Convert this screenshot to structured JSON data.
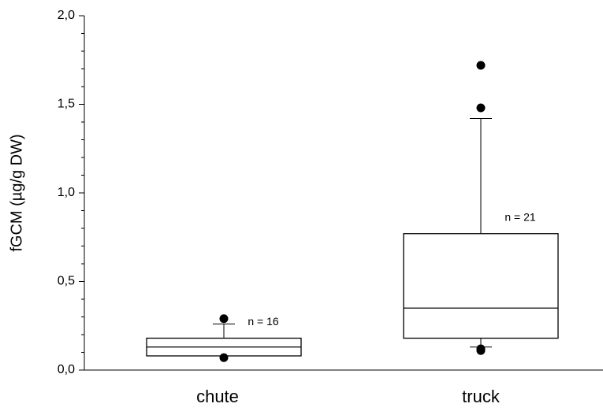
{
  "chart_data": {
    "type": "box",
    "ylabel": "fGCM (µg/g DW)",
    "categories": [
      "chute",
      "truck"
    ],
    "boxes": [
      {
        "whislo": 0.08,
        "q1": 0.08,
        "med": 0.13,
        "q3": 0.18,
        "whishi": 0.26,
        "fliers": [
          0.29,
          0.07
        ],
        "annotation": "n = 16"
      },
      {
        "whislo": 0.13,
        "q1": 0.18,
        "med": 0.35,
        "q3": 0.77,
        "whishi": 1.42,
        "fliers": [
          1.72,
          1.48,
          0.12,
          0.11
        ],
        "annotation": "n = 21"
      }
    ],
    "color": "#000000",
    "ylim": [
      0,
      2.0
    ],
    "yticks": [
      {
        "value": 0,
        "label": "0,0"
      },
      {
        "value": 0.5,
        "label": "0,5"
      },
      {
        "value": 1.0,
        "label": "1,0"
      },
      {
        "value": 1.5,
        "label": "1,5"
      },
      {
        "value": 2.0,
        "label": "2,0"
      }
    ],
    "yminorticks": [
      0.1,
      0.2,
      0.3,
      0.4,
      0.6,
      0.7,
      0.8,
      0.9,
      1.1,
      1.2,
      1.3,
      1.4,
      1.6,
      1.7,
      1.8,
      1.9
    ]
  }
}
